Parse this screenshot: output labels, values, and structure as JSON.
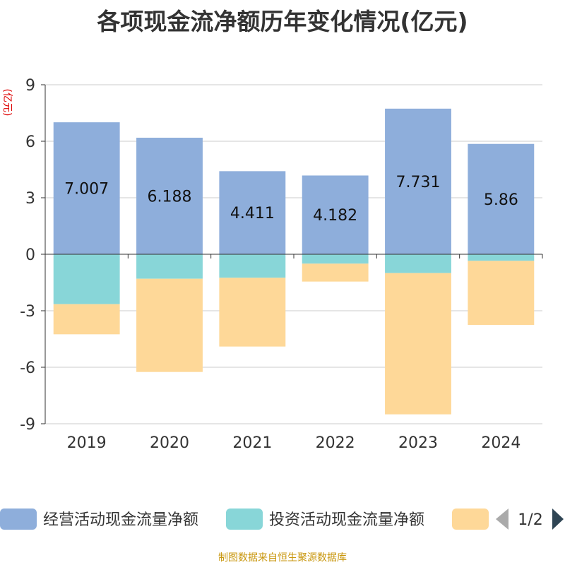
{
  "title": "各项现金流净额历年变化情况(亿元)",
  "source_note": "制图数据来自恒生聚源数据库",
  "legend_pager": "1/2",
  "chart_data": {
    "type": "bar",
    "stacked": true,
    "title": "各项现金流净额历年变化情况(亿元)",
    "ylabel": "(亿元)",
    "xlabel": "",
    "categories": [
      "2019",
      "2020",
      "2021",
      "2022",
      "2023",
      "2024"
    ],
    "ylim": [
      -9,
      9
    ],
    "yticks": [
      9,
      6,
      3,
      0,
      -3,
      -6,
      -9
    ],
    "grid": true,
    "legend_position": "bottom",
    "series": [
      {
        "name": "经营活动现金流量净额",
        "color": "#8eaedb",
        "values": [
          7.007,
          6.188,
          4.411,
          4.182,
          7.731,
          5.86
        ],
        "labels": [
          "7.007",
          "6.188",
          "4.411",
          "4.182",
          "7.731",
          "5.86"
        ]
      },
      {
        "name": "投资活动现金流量净额",
        "color": "#88d6d8",
        "values": [
          -2.65,
          -1.3,
          -1.25,
          -0.5,
          -1.0,
          -0.35
        ]
      },
      {
        "name": "",
        "color": "#fed898",
        "values": [
          -1.6,
          -4.95,
          -3.65,
          -0.95,
          -7.5,
          -3.4
        ]
      }
    ]
  }
}
